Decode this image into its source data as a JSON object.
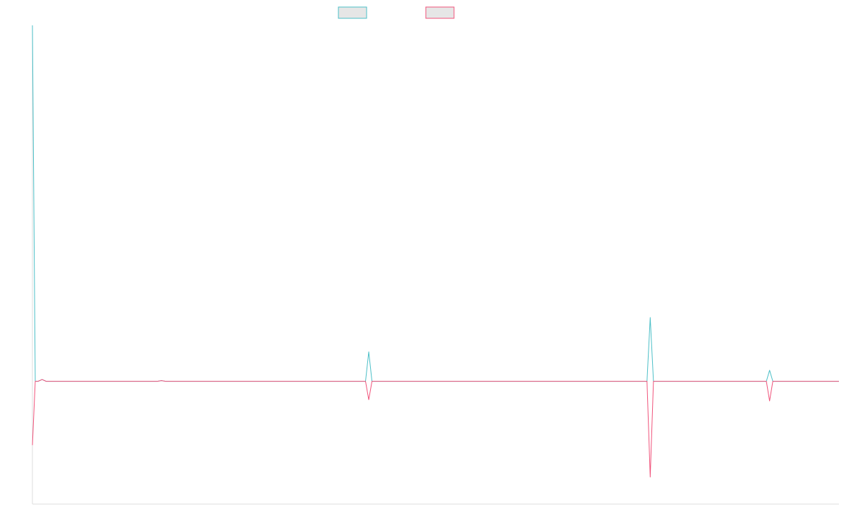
{
  "chart_data": {
    "type": "line",
    "title": "",
    "xlabel": "",
    "ylabel": "",
    "grid": false,
    "legend_position": "top-center",
    "xlim": [
      0,
      100
    ],
    "ylim": [
      -100,
      290
    ],
    "series": [
      {
        "name": "",
        "color": "#4bbfc7",
        "fill": "#e6e6e6",
        "points": [
          [
            0,
            290
          ],
          [
            0.35,
            0
          ],
          [
            0.7,
            0
          ],
          [
            1.2,
            1.5
          ],
          [
            1.7,
            0
          ],
          [
            15.5,
            0
          ],
          [
            16,
            0.6
          ],
          [
            16.5,
            0
          ],
          [
            41.3,
            0
          ],
          [
            41.7,
            24
          ],
          [
            42.1,
            0
          ],
          [
            76.2,
            0
          ],
          [
            76.6,
            52
          ],
          [
            77,
            0
          ],
          [
            91,
            0
          ],
          [
            91.4,
            9
          ],
          [
            91.8,
            0
          ],
          [
            100,
            0
          ]
        ]
      },
      {
        "name": "",
        "color": "#f0527a",
        "fill": "#e6e6e6",
        "points": [
          [
            0,
            -52
          ],
          [
            0.35,
            0
          ],
          [
            0.7,
            0
          ],
          [
            1.2,
            1.5
          ],
          [
            1.7,
            0
          ],
          [
            15.5,
            0
          ],
          [
            16,
            0.6
          ],
          [
            16.5,
            0
          ],
          [
            41.3,
            0
          ],
          [
            41.7,
            -15
          ],
          [
            42.1,
            0
          ],
          [
            76.2,
            0
          ],
          [
            76.6,
            -78
          ],
          [
            77,
            0
          ],
          [
            91,
            0
          ],
          [
            91.4,
            -16
          ],
          [
            91.8,
            0
          ],
          [
            100,
            0
          ]
        ]
      }
    ]
  }
}
